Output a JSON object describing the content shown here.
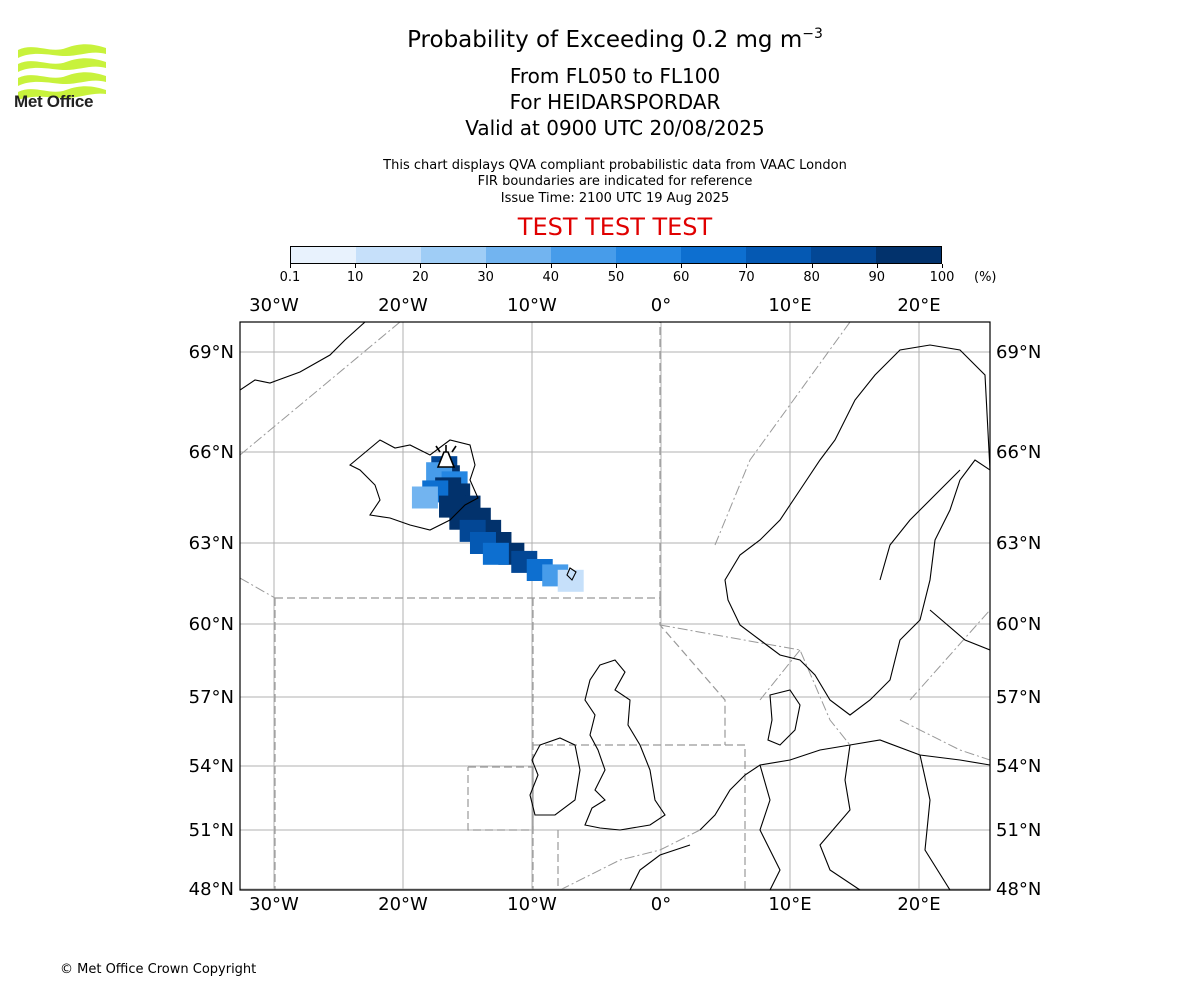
{
  "title": {
    "main_prefix": "Probability of Exceeding 0.2 mg m",
    "main_exponent": "−3",
    "line2": "From FL050 to FL100",
    "line3": "For HEIDARSPORDAR",
    "line4": "Valid at 0900 UTC 20/08/2025"
  },
  "notes": {
    "line1": "This chart displays QVA compliant probabilistic data from VAAC London",
    "line2": "FIR boundaries are indicated for reference",
    "line3": "Issue Time: 2100 UTC 19 Aug 2025"
  },
  "banner": "TEST TEST TEST",
  "logo_text": "Met Office",
  "copyright": "© Met Office Crown Copyright",
  "colorbar": {
    "ticks": [
      "0.1",
      "10",
      "20",
      "30",
      "40",
      "50",
      "60",
      "70",
      "80",
      "90",
      "100"
    ],
    "unit": "(%)",
    "colors": [
      "#e8f2fd",
      "#c6e0fa",
      "#9fcdf6",
      "#72b4f0",
      "#479cea",
      "#2486e2",
      "#0d6fd0",
      "#0559b3",
      "#034795",
      "#02326c"
    ]
  },
  "map": {
    "lon_labels": [
      "30°W",
      "20°W",
      "10°W",
      "0°",
      "10°E",
      "20°E"
    ],
    "lon_values": [
      -30,
      -20,
      -10,
      0,
      10,
      20
    ],
    "lat_labels": [
      "69°N",
      "66°N",
      "63°N",
      "60°N",
      "57°N",
      "54°N",
      "51°N",
      "48°N"
    ],
    "lat_values": [
      69,
      66,
      63,
      60,
      57,
      54,
      51,
      48
    ],
    "volcano": "HEIDARSPORDAR",
    "gridline_color": "#b0b0b0",
    "fir_color": "#999999"
  },
  "chart_data": {
    "type": "heatmap",
    "description_units": "probability percent",
    "cells": [
      {
        "lon": -16.8,
        "lat": 65.5,
        "p": 85
      },
      {
        "lon": -16.6,
        "lat": 65.2,
        "p": 95
      },
      {
        "lon": -17.2,
        "lat": 65.3,
        "p": 40
      },
      {
        "lon": -16.0,
        "lat": 65.0,
        "p": 55
      },
      {
        "lon": -16.5,
        "lat": 64.8,
        "p": 98
      },
      {
        "lon": -15.8,
        "lat": 64.6,
        "p": 98
      },
      {
        "lon": -17.5,
        "lat": 64.7,
        "p": 60
      },
      {
        "lon": -18.3,
        "lat": 64.5,
        "p": 30
      },
      {
        "lon": -15.0,
        "lat": 64.2,
        "p": 98
      },
      {
        "lon": -16.2,
        "lat": 64.2,
        "p": 90
      },
      {
        "lon": -14.2,
        "lat": 63.8,
        "p": 98
      },
      {
        "lon": -15.4,
        "lat": 63.8,
        "p": 92
      },
      {
        "lon": -13.4,
        "lat": 63.4,
        "p": 98
      },
      {
        "lon": -14.6,
        "lat": 63.4,
        "p": 85
      },
      {
        "lon": -12.6,
        "lat": 63.0,
        "p": 95
      },
      {
        "lon": -13.8,
        "lat": 63.0,
        "p": 75
      },
      {
        "lon": -11.6,
        "lat": 62.6,
        "p": 90
      },
      {
        "lon": -12.8,
        "lat": 62.6,
        "p": 60
      },
      {
        "lon": -10.6,
        "lat": 62.3,
        "p": 80
      },
      {
        "lon": -9.4,
        "lat": 62.0,
        "p": 65
      },
      {
        "lon": -8.2,
        "lat": 61.8,
        "p": 40
      },
      {
        "lon": -7.0,
        "lat": 61.6,
        "p": 15
      }
    ]
  }
}
